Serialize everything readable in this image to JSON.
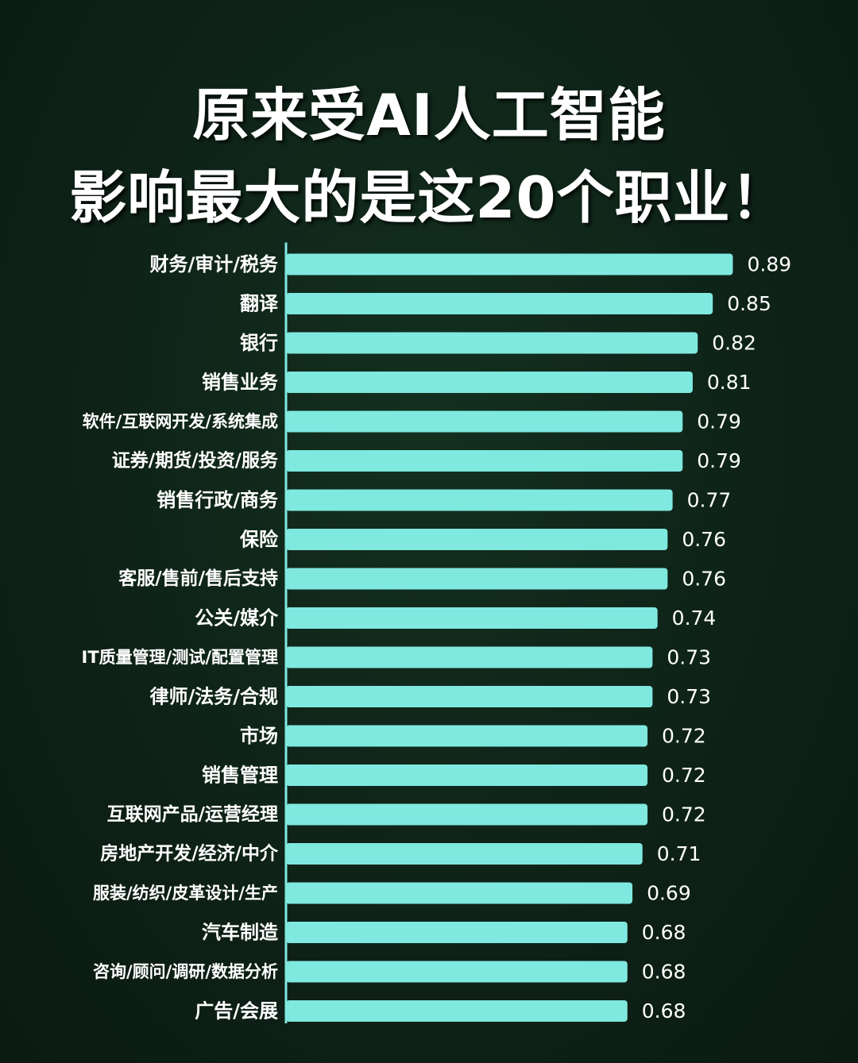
{
  "title_line1": "原来受AI人工智能",
  "title_line2": "影响最大的是这20个职业！",
  "colors": {
    "background": "#0e2117",
    "bar": "#7fe9e0",
    "axis": "#7fe9e0",
    "text": "#ffffff"
  },
  "chart_data": {
    "type": "bar",
    "orientation": "horizontal",
    "categories": [
      "财务/审计/税务",
      "翻译",
      "银行",
      "销售业务",
      "软件/互联网开发/系统集成",
      "证券/期货/投资/服务",
      "销售行政/商务",
      "保险",
      "客服/售前/售后支持",
      "公关/媒介",
      "IT质量管理/测试/配置管理",
      "律师/法务/合规",
      "市场",
      "销售管理",
      "互联网产品/运营经理",
      "房地产开发/经济/中介",
      "服装/纺织/皮革设计/生产",
      "汽车制造",
      "咨询/顾问/调研/数据分析",
      "广告/会展"
    ],
    "values": [
      0.89,
      0.85,
      0.82,
      0.81,
      0.79,
      0.79,
      0.77,
      0.76,
      0.76,
      0.74,
      0.73,
      0.73,
      0.72,
      0.72,
      0.72,
      0.71,
      0.69,
      0.68,
      0.68,
      0.68
    ],
    "value_labels": [
      "0.89",
      "0.85",
      "0.82",
      "0.81",
      "0.79",
      "0.79",
      "0.77",
      "0.76",
      "0.76",
      "0.74",
      "0.73",
      "0.73",
      "0.72",
      "0.72",
      "0.72",
      "0.71",
      "0.69",
      "0.68",
      "0.68",
      "0.68"
    ],
    "title": "",
    "xlabel": "",
    "ylabel": "",
    "grid": false,
    "legend": "none"
  }
}
